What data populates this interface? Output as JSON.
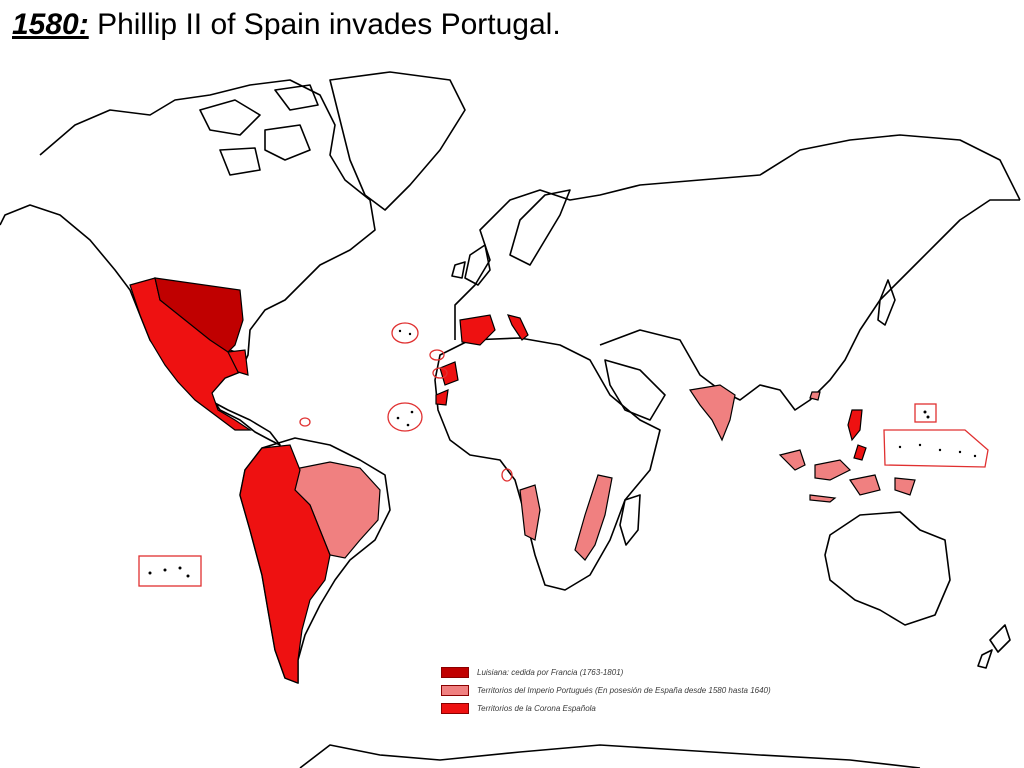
{
  "title": {
    "year": "1580:",
    "text": " Phillip II of Spain invades Portugal."
  },
  "colors": {
    "louisiana": "#c00000",
    "portuguese": "#f08080",
    "spanish": "#ee1111",
    "land_outline": "#000000",
    "marker_outline": "#e03030"
  },
  "legend": [
    {
      "label": "Luisiana: cedida por Francia (1763-1801)",
      "color": "#c00000"
    },
    {
      "label": "Territorios del Imperio Portugués (En posesión de España desde 1580 hasta 1640)",
      "color": "#f08080"
    },
    {
      "label": "Territorios de la Corona Española",
      "color": "#ee1111"
    }
  ]
}
